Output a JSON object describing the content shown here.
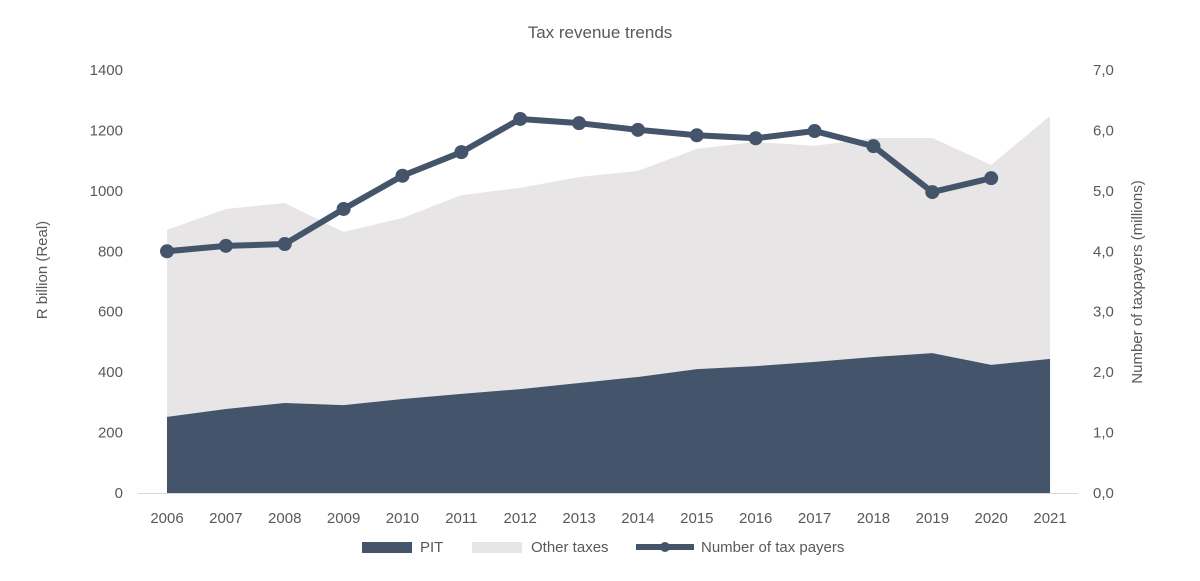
{
  "chart_data": {
    "type": "area",
    "title": "Tax revenue trends",
    "categories": [
      "2006",
      "2007",
      "2008",
      "2009",
      "2010",
      "2011",
      "2012",
      "2013",
      "2014",
      "2015",
      "2016",
      "2017",
      "2018",
      "2019",
      "2020",
      "2021"
    ],
    "stacked": true,
    "series": [
      {
        "name": "PIT",
        "type": "area",
        "axis": "left",
        "color": "#44546a",
        "values": [
          252,
          278,
          298,
          291,
          311,
          328,
          344,
          364,
          384,
          410,
          420,
          434,
          450,
          463,
          424,
          444
        ]
      },
      {
        "name": "Other taxes",
        "type": "area",
        "axis": "left",
        "color": "#e7e5e6",
        "values": [
          619,
          662,
          662,
          573,
          599,
          658,
          666,
          682,
          682,
          729,
          742,
          715,
          725,
          712,
          662,
          804
        ]
      },
      {
        "name": "Number of tax payers",
        "type": "line",
        "axis": "right",
        "color": "#44546a",
        "markers": true,
        "values": [
          4.0,
          4.09,
          4.12,
          4.7,
          5.25,
          5.64,
          6.19,
          6.12,
          6.01,
          5.92,
          5.87,
          5.99,
          5.74,
          4.98,
          5.21,
          null
        ]
      }
    ],
    "ylabel": "R billion (Real)",
    "ylim": [
      0,
      1400
    ],
    "yticks": [
      "0",
      "200",
      "400",
      "600",
      "800",
      "1000",
      "1200",
      "1400"
    ],
    "y2label": "Number of taxpayers (millions)",
    "y2lim": [
      0,
      7
    ],
    "y2ticks": [
      "0,0",
      "1,0",
      "2,0",
      "3,0",
      "4,0",
      "5,0",
      "6,0",
      "7,0"
    ],
    "grid": false,
    "legend": "bottom"
  }
}
